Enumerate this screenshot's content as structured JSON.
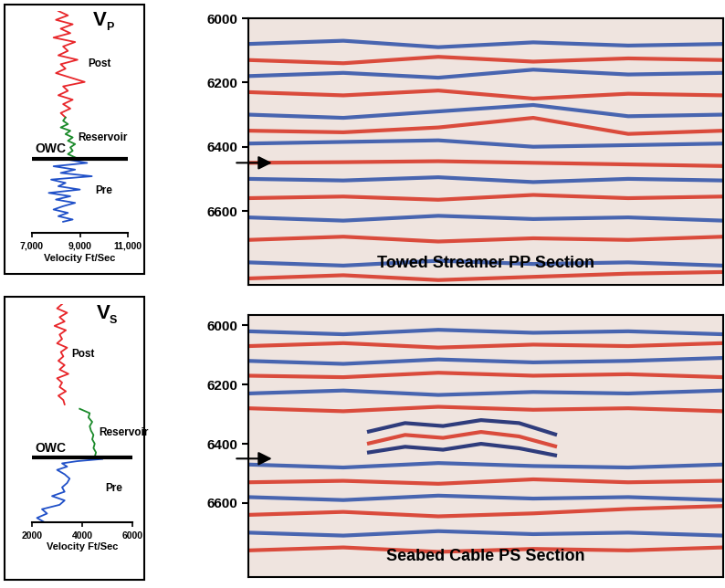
{
  "chart_data": [
    {
      "type": "line",
      "title": {
        "symbol": "V",
        "subscript": "P"
      },
      "x_label": "Velocity Ft/Sec",
      "xlim": [
        7000,
        11000
      ],
      "xticks": [
        {
          "value": 7000,
          "label": "7,000"
        },
        {
          "value": 9000,
          "label": "9,000"
        },
        {
          "value": 11000,
          "label": "11,000"
        }
      ],
      "ylim": [
        100,
        0
      ],
      "tick_labels": "x",
      "owc": {
        "label": "OWC",
        "depth": 66.5
      },
      "series": [
        {
          "name": "Post",
          "color": "#e8262a",
          "x": [
            8100,
            8500,
            8000,
            8700,
            8200,
            8600,
            7900,
            8800,
            8300,
            8500,
            8100,
            8900,
            8200,
            8400,
            8000,
            8600,
            9200,
            8300,
            8500,
            8100,
            8700,
            8300,
            8600,
            8200,
            8400
          ],
          "y": [
            0,
            2,
            4,
            6,
            8,
            10,
            12,
            14,
            16,
            18,
            20,
            22,
            24,
            26,
            28,
            30,
            32,
            34,
            36,
            38,
            40,
            42,
            44,
            46,
            48
          ]
        },
        {
          "name": "Reservoir",
          "color": "#1a8a2a",
          "x": [
            8400,
            8300,
            8500,
            8200,
            8600,
            8400,
            8700,
            8500,
            8800,
            8600,
            8700,
            8500,
            8800
          ],
          "y": [
            48,
            49.5,
            51,
            52.5,
            54,
            55.5,
            57,
            58.5,
            60,
            61.5,
            63,
            64.5,
            66
          ]
        },
        {
          "name": "Pre",
          "color": "#2050c8",
          "x": [
            8500,
            9300,
            7900,
            8800,
            8200,
            9500,
            7800,
            8400,
            8100,
            9000,
            7700,
            8600,
            8000,
            8800,
            8300,
            7900,
            8500,
            8100,
            8700,
            8300
          ],
          "y": [
            67,
            68.5,
            70,
            71.5,
            73,
            74.5,
            76,
            77.5,
            79,
            80.5,
            82,
            83.5,
            85,
            86.5,
            88,
            89.5,
            91,
            92.5,
            94,
            95
          ]
        }
      ]
    },
    {
      "type": "seismic",
      "label": "Towed Streamer PP Section",
      "xlim": [
        0,
        100
      ],
      "ylim": [
        6830,
        6000
      ],
      "yticks": [
        6000,
        6200,
        6400,
        6600
      ],
      "tick_labels": "y",
      "arrow": 6450,
      "x": [
        0,
        20,
        40,
        60,
        80,
        100
      ],
      "horizons": [
        {
          "color": "#2b4fa8",
          "y": [
            6080,
            6070,
            6090,
            6075,
            6085,
            6080
          ]
        },
        {
          "color": "#d7301f",
          "y": [
            6130,
            6140,
            6120,
            6135,
            6125,
            6130
          ]
        },
        {
          "color": "#2b4fa8",
          "y": [
            6180,
            6170,
            6185,
            6160,
            6175,
            6170
          ]
        },
        {
          "color": "#d7301f",
          "y": [
            6230,
            6240,
            6225,
            6250,
            6235,
            6240
          ]
        },
        {
          "color": "#2b4fa8",
          "y": [
            6300,
            6310,
            6290,
            6270,
            6305,
            6300
          ]
        },
        {
          "color": "#d7301f",
          "y": [
            6350,
            6355,
            6340,
            6310,
            6360,
            6350
          ]
        },
        {
          "color": "#2b4fa8",
          "y": [
            6390,
            6385,
            6380,
            6400,
            6395,
            6390
          ]
        },
        {
          "color": "#d7301f",
          "y": [
            6450,
            6448,
            6445,
            6450,
            6455,
            6460
          ]
        },
        {
          "color": "#2b4fa8",
          "y": [
            6500,
            6505,
            6495,
            6510,
            6500,
            6505
          ]
        },
        {
          "color": "#d7301f",
          "y": [
            6560,
            6555,
            6565,
            6550,
            6560,
            6555
          ]
        },
        {
          "color": "#2b4fa8",
          "y": [
            6620,
            6630,
            6615,
            6625,
            6620,
            6630
          ]
        },
        {
          "color": "#d7301f",
          "y": [
            6690,
            6680,
            6695,
            6685,
            6690,
            6680
          ]
        },
        {
          "color": "#2b4fa8",
          "y": [
            6760,
            6770,
            6755,
            6765,
            6760,
            6770
          ]
        },
        {
          "color": "#d7301f",
          "y": [
            6810,
            6800,
            6815,
            6805,
            6795,
            6790
          ]
        }
      ]
    },
    {
      "type": "line",
      "title": {
        "symbol": "V",
        "subscript": "S"
      },
      "x_label": "Velocity Ft/Sec",
      "xlim": [
        2000,
        6000
      ],
      "xticks": [
        2000,
        4000,
        6000
      ],
      "ylim": [
        100,
        0
      ],
      "tick_labels": "x",
      "owc": {
        "label": "OWC",
        "depth": 70.5
      },
      "series": [
        {
          "name": "Post",
          "color": "#e8262a",
          "x": [
            3200,
            3000,
            3400,
            3100,
            3300,
            2900,
            3350,
            3100,
            3200,
            3000,
            3400,
            3150,
            3250,
            3050,
            3300,
            3100,
            3450,
            3000,
            3200,
            3100,
            3350,
            3050,
            3250,
            3300
          ],
          "y": [
            0,
            2,
            4,
            6,
            8,
            10,
            12,
            14,
            16,
            18,
            20,
            22,
            24,
            26,
            28,
            30,
            32,
            34,
            36,
            38,
            40,
            42,
            44,
            46
          ]
        },
        {
          "name": "Reservoir",
          "color": "#1a8a2a",
          "x": [
            3900,
            4300,
            4250,
            4400,
            4300,
            4350,
            4450,
            4400,
            4500,
            4450,
            4550,
            4500
          ],
          "y": [
            48,
            50,
            52,
            54,
            56,
            58,
            60,
            62,
            64,
            66,
            68,
            70
          ]
        },
        {
          "name": "Pre",
          "color": "#2050c8",
          "x": [
            4800,
            3800,
            3200,
            3400,
            3000,
            3300,
            3500,
            3400,
            3200,
            3300,
            2800,
            3300,
            3100,
            2400,
            2600,
            2200,
            2500
          ],
          "y": [
            71,
            72,
            73,
            74.5,
            76,
            78,
            80,
            82,
            84,
            86,
            88,
            90,
            92,
            94,
            96,
            98,
            100
          ]
        }
      ]
    },
    {
      "type": "seismic",
      "label": "Seabed Cable PS Section",
      "xlim": [
        0,
        100
      ],
      "ylim": [
        6850,
        5965
      ],
      "yticks": [
        6000,
        6200,
        6400,
        6600
      ],
      "tick_labels": "y",
      "arrow": 6450,
      "x": [
        0,
        20,
        40,
        60,
        80,
        100
      ],
      "horizons": [
        {
          "color": "#2b4fa8",
          "y": [
            6020,
            6030,
            6015,
            6025,
            6020,
            6030
          ]
        },
        {
          "color": "#d7301f",
          "y": [
            6070,
            6060,
            6075,
            6065,
            6070,
            6060
          ]
        },
        {
          "color": "#2b4fa8",
          "y": [
            6120,
            6130,
            6115,
            6125,
            6120,
            6110
          ]
        },
        {
          "color": "#d7301f",
          "y": [
            6170,
            6175,
            6160,
            6170,
            6165,
            6175
          ]
        },
        {
          "color": "#2b4fa8",
          "y": [
            6230,
            6220,
            6235,
            6225,
            6230,
            6220
          ]
        },
        {
          "color": "#d7301f",
          "y": [
            6280,
            6290,
            6275,
            6285,
            6280,
            6290
          ]
        },
        {
          "color": "#2b4fa8",
          "y": [
            6470,
            6480,
            6465,
            6475,
            6480,
            6470
          ]
        },
        {
          "color": "#d7301f",
          "y": [
            6530,
            6525,
            6535,
            6520,
            6530,
            6525
          ]
        },
        {
          "color": "#2b4fa8",
          "y": [
            6580,
            6590,
            6575,
            6585,
            6580,
            6590
          ]
        },
        {
          "color": "#d7301f",
          "y": [
            6640,
            6630,
            6645,
            6635,
            6620,
            6610
          ]
        },
        {
          "color": "#2b4fa8",
          "y": [
            6700,
            6710,
            6695,
            6705,
            6700,
            6710
          ]
        },
        {
          "color": "#d7301f",
          "y": [
            6760,
            6750,
            6765,
            6755,
            6760,
            6750
          ]
        },
        {
          "color": "#0d1f6b",
          "x": [
            25,
            33,
            41,
            49,
            57,
            65
          ],
          "y": [
            6360,
            6330,
            6340,
            6320,
            6330,
            6370
          ]
        },
        {
          "color": "#d7301f",
          "x": [
            25,
            33,
            41,
            49,
            57,
            65
          ],
          "y": [
            6400,
            6370,
            6380,
            6360,
            6375,
            6410
          ]
        },
        {
          "color": "#0d1f6b",
          "x": [
            25,
            33,
            41,
            49,
            57,
            65
          ],
          "y": [
            6430,
            6410,
            6420,
            6400,
            6415,
            6440
          ]
        }
      ]
    }
  ]
}
